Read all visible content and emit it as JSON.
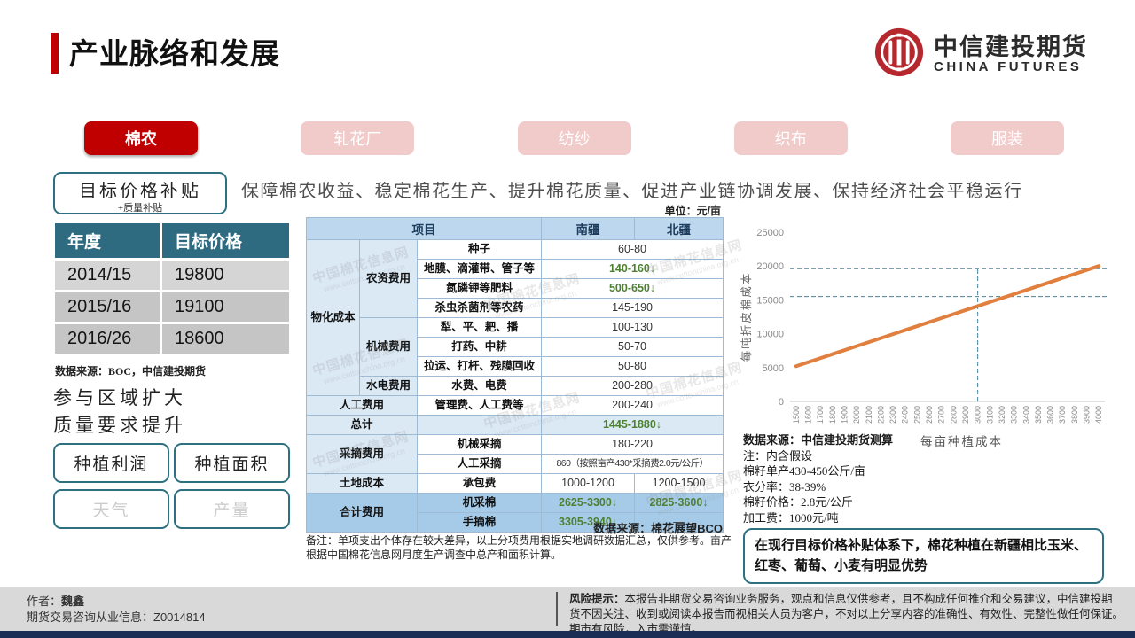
{
  "header": {
    "title": "产业脉络和发展"
  },
  "logo": {
    "cn": "中信建投期货",
    "en": "CHINA FUTURES"
  },
  "tabs": [
    {
      "label": "棉农",
      "active": true
    },
    {
      "label": "轧花厂",
      "active": false
    },
    {
      "label": "纺纱",
      "active": false
    },
    {
      "label": "织布",
      "active": false
    },
    {
      "label": "服装",
      "active": false
    }
  ],
  "policy": {
    "box_title": "目标价格补贴",
    "box_sub": "+质量补贴",
    "desc": "保障棉农收益、稳定棉花生产、提升棉花质量、促进产业链协调发展、保持经济社会平稳运行"
  },
  "target_table": {
    "headers": [
      "年度",
      "目标价格"
    ],
    "rows": [
      [
        "2014/15",
        "19800"
      ],
      [
        "2015/16",
        "19100"
      ],
      [
        "2016/26",
        "18600"
      ]
    ],
    "source": "数据来源：BOC，中信建投期货"
  },
  "left_notes": [
    "参与区域扩大",
    "质量要求提升"
  ],
  "factors": [
    {
      "label": "种植利润",
      "muted": false
    },
    {
      "label": "种植面积",
      "muted": false
    },
    {
      "label": "天气",
      "muted": true
    },
    {
      "label": "产量",
      "muted": true
    }
  ],
  "cost_table": {
    "unit": "单位：元/亩",
    "headers": [
      {
        "t": "项目",
        "c": 3
      },
      {
        "t": "南疆",
        "c": 1
      },
      {
        "t": "北疆",
        "c": 1
      }
    ],
    "rows": [
      [
        {
          "t": "物化成本",
          "r": 8,
          "cls": "c"
        },
        {
          "t": "农资费用",
          "r": 4,
          "cls": "c"
        },
        {
          "t": "种子",
          "cls": "i"
        },
        {
          "t": "60-80",
          "c": 2,
          "cls": "v"
        }
      ],
      [
        {
          "t": "地膜、滴灌带、管子等",
          "cls": "i"
        },
        {
          "t": "140-160↓",
          "c": 2,
          "cls": "v g"
        }
      ],
      [
        {
          "t": "氮磷钾等肥料",
          "cls": "i"
        },
        {
          "t": "500-650↓",
          "c": 2,
          "cls": "v g"
        }
      ],
      [
        {
          "t": "杀虫杀菌剂等农药",
          "cls": "i"
        },
        {
          "t": "145-190",
          "c": 2,
          "cls": "v"
        }
      ],
      [
        {
          "t": "机械费用",
          "r": 3,
          "cls": "c"
        },
        {
          "t": "犁、平、耙、播",
          "cls": "i"
        },
        {
          "t": "100-130",
          "c": 2,
          "cls": "v"
        }
      ],
      [
        {
          "t": "打药、中耕",
          "cls": "i"
        },
        {
          "t": "50-70",
          "c": 2,
          "cls": "v"
        }
      ],
      [
        {
          "t": "拉运、打杆、残膜回收",
          "cls": "i"
        },
        {
          "t": "50-80",
          "c": 2,
          "cls": "v"
        }
      ],
      [
        {
          "t": "水电费用",
          "cls": "c"
        },
        {
          "t": "水费、电费",
          "cls": "i"
        },
        {
          "t": "200-280",
          "c": 2,
          "cls": "v"
        }
      ],
      [
        {
          "t": "人工费用",
          "c": 2,
          "cls": "c"
        },
        {
          "t": "管理费、人工费等",
          "cls": "i"
        },
        {
          "t": "200-240",
          "c": 2,
          "cls": "v"
        }
      ],
      [
        {
          "t": "总计",
          "c": 2,
          "cls": "c"
        },
        {
          "t": "",
          "cls": "c"
        },
        {
          "t": "1445-1880↓",
          "c": 2,
          "cls": "c g"
        }
      ],
      [
        {
          "t": "采摘费用",
          "r": 2,
          "c": 2,
          "cls": "c"
        },
        {
          "t": "机械采摘",
          "cls": "i"
        },
        {
          "t": "180-220",
          "c": 2,
          "cls": "v"
        }
      ],
      [
        {
          "t": "人工采摘",
          "cls": "i"
        },
        {
          "t": "860（按照亩产430*采摘费2.0元/公斤）",
          "c": 2,
          "cls": "v sm"
        }
      ],
      [
        {
          "t": "土地成本",
          "c": 2,
          "cls": "c"
        },
        {
          "t": "承包费",
          "cls": "i"
        },
        {
          "t": "1000-1200",
          "cls": "v"
        },
        {
          "t": "1200-1500",
          "cls": "v"
        }
      ],
      [
        {
          "t": "合计费用",
          "r": 2,
          "c": 2,
          "cls": "c b"
        },
        {
          "t": "机采棉",
          "cls": "i b"
        },
        {
          "t": "2625-3300↓",
          "cls": "v g b"
        },
        {
          "t": "2825-3600↓",
          "cls": "v g b"
        }
      ],
      [
        {
          "t": "手摘棉",
          "cls": "i b"
        },
        {
          "t": "3305-3940↓",
          "cls": "v g b"
        },
        {
          "t": "—",
          "cls": "v b"
        }
      ]
    ],
    "source": "数据来源：棉花展望BCO",
    "remark": "备注：单项支出个体存在较大差异，以上分项费用根据实地调研数据汇总，仅供参考。亩产根据中国棉花信息网月度生产调查中总产和面积计算。"
  },
  "chart_data": {
    "type": "line",
    "x_label": "每亩种植成本",
    "y_label": "每吨折皮棉成本",
    "x": [
      1500,
      1600,
      1700,
      1800,
      1900,
      2000,
      2100,
      2200,
      2300,
      2400,
      2500,
      2600,
      2700,
      2800,
      2900,
      3000,
      3100,
      3200,
      3300,
      3400,
      3500,
      3600,
      3700,
      3800,
      3900,
      4000
    ],
    "series": [
      {
        "name": "每吨折皮棉成本",
        "color": "#e07f3e",
        "values": [
          5200,
          5792,
          6384,
          6976,
          7568,
          8160,
          8752,
          9344,
          9936,
          10528,
          11120,
          11712,
          12304,
          12896,
          13488,
          14080,
          14672,
          15264,
          15856,
          16448,
          17040,
          17632,
          18224,
          18816,
          19408,
          20000
        ]
      }
    ],
    "ylim": [
      0,
      25000
    ],
    "y_ticks": [
      0,
      5000,
      10000,
      15000,
      20000,
      25000
    ],
    "ref_lines": {
      "horizontal": [
        15500,
        19600
      ],
      "vertical": [
        3000
      ]
    },
    "grid": false,
    "legend": "none",
    "ref_color": "#4a8096"
  },
  "chart_notes": [
    "数据来源：中信建投期货测算",
    "注：内含假设",
    "棉籽单产430-450公斤/亩",
    "衣分率：38-39%",
    "棉籽价格：2.8元/公斤",
    "加工费：1000元/吨"
  ],
  "conclusion": "在现行目标价格补贴体系下，棉花种植在新疆相比玉米、红枣、葡萄、小麦有明显优势",
  "footer": {
    "author_label": "作者：",
    "author_name": "魏鑫",
    "license": "期货交易咨询从业信息：Z0014814",
    "risk_label": "风险提示：",
    "risk_text": "本报告非期货交易咨询业务服务，观点和信息仅供参考，且不构成任何推介和交易建议，中信建投期货不因关注、收到或阅读本报告而视相关人员为客户，不对以上分享内容的准确性、有效性、完整性做任何保证。期市有风险，入市需谨慎。"
  },
  "watermark": {
    "name": "中国棉花信息网",
    "url": "www.cottonchina.org.cn"
  },
  "colors": {
    "accent_red": "#c00000",
    "teal": "#2e6f80",
    "table_header_blue": "#bdd7ee",
    "total_blue": "#a6cbe8",
    "green": "#4e8032",
    "line_orange": "#e07f3e"
  }
}
